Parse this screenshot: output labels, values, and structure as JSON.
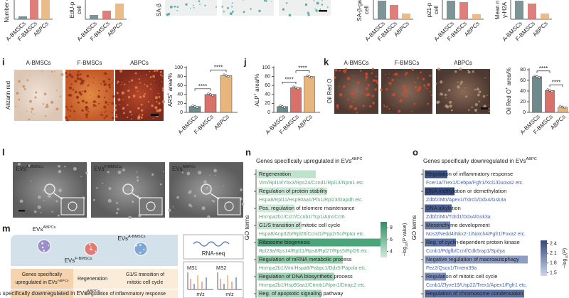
{
  "top_row": [
    {
      "y_title": [
        "Number o"
      ],
      "x_labels": [
        "A-BMSCs",
        "F-BMSCs",
        "ABPCs"
      ]
    },
    {
      "y_title": [
        "EdU-p",
        "cell"
      ],
      "x_labels": [
        "A-BMSCs",
        "F-BMSCs",
        "ABPCs"
      ]
    },
    {
      "y_title": [
        "SA-β"
      ],
      "x_labels": []
    },
    {
      "y_title": [
        "SA-β-gal",
        "cell"
      ],
      "x_labels": [
        "A-BMSCs",
        "F-BMSCs",
        "ABPCs"
      ]
    },
    {
      "y_title": [
        "p21-p",
        "cell"
      ],
      "x_labels": [
        "A-BMSCs",
        "F-BMSCs",
        "ABPCs"
      ]
    },
    {
      "y_title": [
        "Mean n",
        "γ-H2A"
      ],
      "x_labels": [
        "A-BMSCs",
        "F-BMSCs",
        "ABPCs"
      ]
    }
  ],
  "panel_i": {
    "label": "i",
    "stain": "Alizarin red",
    "image_titles": [
      "A-BMSCs",
      "F-BMSCs",
      "ABPCs"
    ],
    "chart": {
      "y_title": {
        "before": "ARS",
        "sup": "+",
        "after": " area/%"
      },
      "categories": [
        "A-BMSCs",
        "F-BMSCs",
        "ABPCs"
      ],
      "values": [
        13,
        40,
        82
      ],
      "colors": [
        "#6f8a8c",
        "#d9716b",
        "#e8b57c"
      ],
      "ylim": [
        0,
        100
      ],
      "yticks": [
        0,
        20,
        40,
        60,
        80,
        100
      ],
      "significance": [
        "****",
        "****"
      ]
    }
  },
  "panel_j": {
    "label": "j",
    "chart": {
      "y_title": {
        "before": "ALP",
        "sup": "+",
        "after": " area/%"
      },
      "categories": [
        "A-BMSCs",
        "F-BMSCs",
        "ABPCs"
      ],
      "values": [
        13,
        55,
        80
      ],
      "colors": [
        "#6f8a8c",
        "#d9716b",
        "#e8b57c"
      ],
      "ylim": [
        0,
        100
      ],
      "yticks": [
        0,
        20,
        40,
        60,
        80,
        100
      ],
      "significance": [
        "****",
        "****"
      ]
    }
  },
  "panel_k": {
    "label": "k",
    "stain": "Oil Red O",
    "image_titles": [
      "A-BMSCs",
      "F-BMSCs",
      "ABPCs"
    ],
    "chart": {
      "y_title": {
        "before": "Oil Red O",
        "sup": "+",
        "after": " area/%"
      },
      "categories": [
        "A-BMSCs",
        "F-BMSCs",
        "ABPCs"
      ],
      "values": [
        67,
        41,
        10
      ],
      "colors": [
        "#6f8a8c",
        "#d9716b",
        "#e8b57c"
      ],
      "ylim": [
        0,
        80
      ],
      "yticks": [
        0,
        20,
        40,
        60,
        80
      ],
      "significance": [
        "****",
        "****"
      ]
    }
  },
  "panel_l": {
    "label": "l",
    "images": [
      {
        "main": "EVs",
        "sup": "A-BMSCs"
      },
      {
        "main": "EVs",
        "sup": "F-BMSCs"
      },
      {
        "main": "EVs",
        "sup": "ABPCs"
      }
    ]
  },
  "panel_m": {
    "label": "m",
    "evs": [
      {
        "main": "EVs",
        "sup": "ABPCs"
      },
      {
        "main": "EVs",
        "sup": "F-BMSCs"
      },
      {
        "main": "EVs",
        "sup": "A-BMSCs"
      }
    ],
    "rna_seq": "RNA-seq",
    "ms": [
      "MS1",
      "MS2"
    ],
    "mz": [
      "m/z",
      "m/z"
    ],
    "rows": [
      {
        "header": {
          "line1": "Genes specifically",
          "line2": {
            "main": "upregulated in EVs",
            "sup": "ABPCs"
          }
        },
        "cells": [
          [
            "Regeneration"
          ],
          [
            "G1/S transition of",
            "mitotic cell cycle"
          ]
        ]
      },
      {
        "header": {
          "line2": {
            "main": "Genes specifically downregulated in EVs",
            "sup": "ABPCs"
          }
        },
        "cells": [
          [
            "Regulation of inflammatory response"
          ]
        ]
      }
    ]
  },
  "panel_n": {
    "label": "n",
    "title": {
      "main": "Genes specifically upregulated in EVs",
      "sup": "ABPC"
    },
    "axis_title": "GO terms",
    "terms": [
      {
        "term": "Regeneration",
        "genes": "Vim/Rpl19/Ybx3/Rps24/Ccnd1/Rpl13/Npm1 etc."
      },
      {
        "term": "Regulation of protein stability",
        "genes": "Hspa8/Rpl11/Hsp90aa1/Pfn1/Rpl23/Gapdh etc."
      },
      {
        "term": "Pos. regulation of telomere maintenance",
        "genes": "Hnrnpa2b1/Cct7/Ccnb1/Tcp1/Atrx/Cct6"
      },
      {
        "term": "G1/S transition of mitotic cell cycle",
        "genes": "Hspa8/Anp32b/Rpl26/Ccnd1/Ppp2r5c/Rptor etc."
      },
      {
        "term": "Ribosome biogenesis",
        "genes": "Rpl23a/Rps14/Rpl11/Rps8/Rpl27/Rps5/Rpl26 etc."
      },
      {
        "term": "Regulation of mRNA metabolic process",
        "genes": "Hnrnpa2b1/Vim/Hspa8/Pabpc1/Ddx5/Papola etc."
      },
      {
        "term": "Regulation of DNA biosynthetic process",
        "genes": "Hnrnpa2b1/Hsp90aa1/Ctnnb1/Npm1/Dnajc2 etc."
      },
      {
        "term": "Reg. of apoptotic signaling pathway"
      }
    ],
    "colorbar": {
      "ticks": [
        8,
        6,
        4
      ],
      "lim": [
        3,
        9
      ],
      "title": {
        "before": "−log",
        "sub": "10",
        "after": "(P value)"
      }
    }
  },
  "panel_o": {
    "label": "o",
    "title": {
      "main": "Genes specifically downregulated in EVs",
      "sup": "ABPC"
    },
    "axis_title": "GO terms",
    "terms": [
      {
        "term": "Regulation of inflammatory response",
        "genes": "Fcer1a/Trex1/Cebpa/Fgfr1/Xcl1/Duoxa2 etc."
      },
      {
        "term": "DNA methylation or demethylation",
        "genes": "Zdbf2/Mtr/Apex1/Tdrd1/Ddx4/Gsk3a"
      },
      {
        "term": "DNA alkylation",
        "genes": "Zdbf2/Mtr/Tdrd1/Ddx4/Gsk3a"
      },
      {
        "term": "Mesenchyme development",
        "genes": "Nos3/Nedd4/Nkx2-1/Notch4/Fgfr1/Foxa2 etc."
      },
      {
        "term": "Reg. of cyclin-dependent protein kinase",
        "genes": "Ccnb1/Pdgfb/Ccnf/Cdk5rap1/Spdya"
      },
      {
        "term": "Negative regulation of macroautophagy",
        "genes": "Fez2/Qsox1/Tmem39a"
      },
      {
        "term": "Regulation of mitotic cell cycle",
        "genes": "Ccnb1/Zfyve19/Usp22/Trex1/Apex1/Fgfr1 etc."
      },
      {
        "term": "Regulation of chromosome condensation"
      }
    ],
    "colorbar": {
      "ticks": [
        2.4,
        2.1,
        1.8,
        1.5
      ],
      "lim": [
        1.4,
        2.5
      ],
      "title": {
        "before": "−log",
        "sub": "10",
        "after": "(P)"
      }
    }
  }
}
